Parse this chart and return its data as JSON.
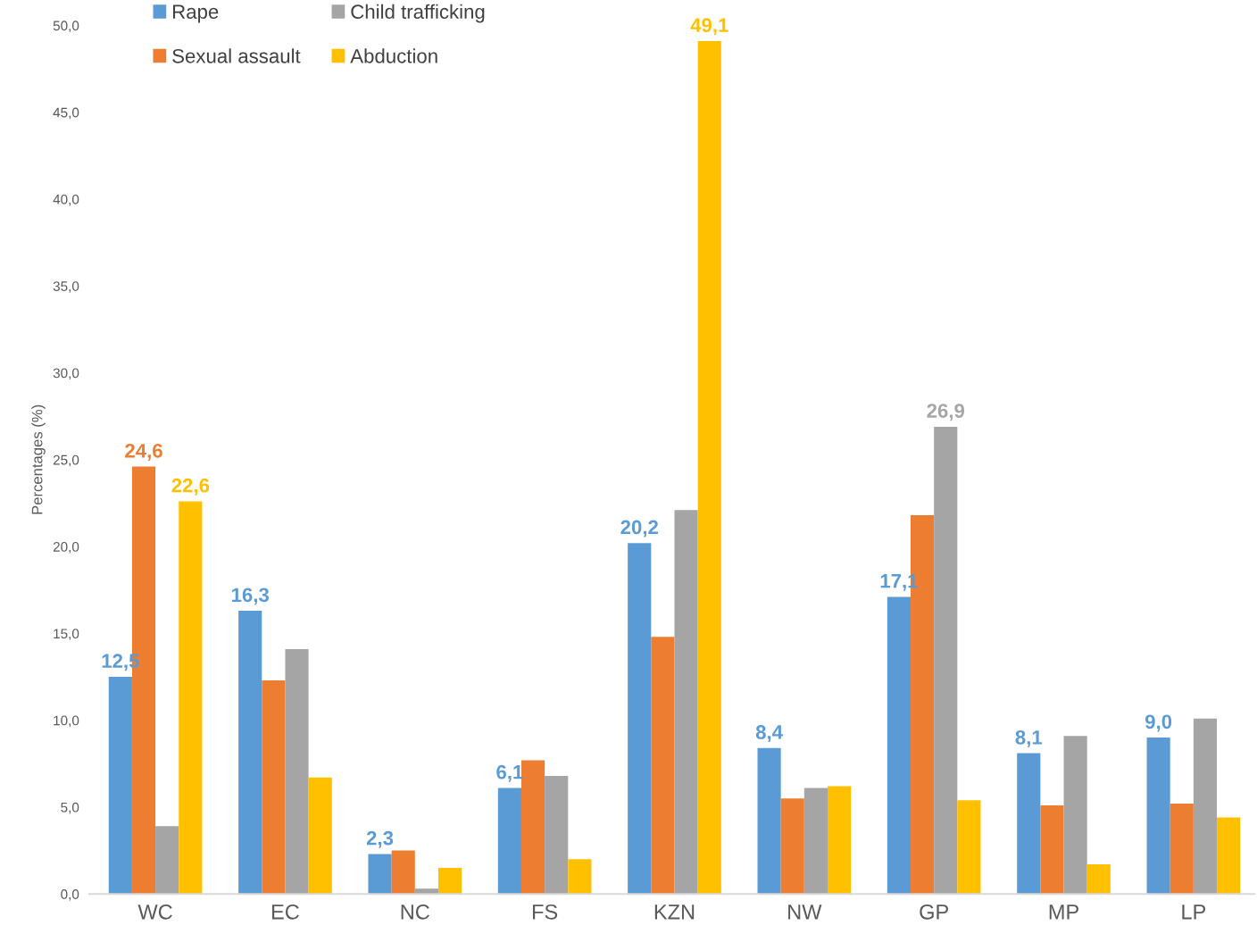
{
  "chart_data": {
    "type": "bar",
    "ylabel": "Percentages (%)",
    "categories": [
      "WC",
      "EC",
      "NC",
      "FS",
      "KZN",
      "NW",
      "GP",
      "MP",
      "LP"
    ],
    "series": [
      {
        "name": "Rape",
        "color": "#5b9bd5",
        "values": [
          12.5,
          16.3,
          2.3,
          6.1,
          20.2,
          8.4,
          17.1,
          8.1,
          9.0
        ],
        "value_labels": [
          "12,5",
          "16,3",
          "2,3",
          "6,1",
          "20,2",
          "8,4",
          "17,1",
          "8,1",
          "9,0"
        ]
      },
      {
        "name": "Sexual assault",
        "color": "#ed7d31",
        "values": [
          24.6,
          12.3,
          2.5,
          7.7,
          14.8,
          5.5,
          21.8,
          5.1,
          5.2
        ],
        "value_labels": [
          "24,6",
          null,
          null,
          null,
          null,
          null,
          null,
          null,
          null
        ]
      },
      {
        "name": "Child trafficking",
        "color": "#a5a5a5",
        "values": [
          3.9,
          14.1,
          0.3,
          6.8,
          22.1,
          6.1,
          26.9,
          9.1,
          10.1
        ],
        "value_labels": [
          null,
          null,
          null,
          null,
          null,
          null,
          "26,9",
          null,
          null
        ]
      },
      {
        "name": "Abduction",
        "color": "#ffc000",
        "values": [
          22.6,
          6.7,
          1.5,
          2.0,
          49.1,
          6.2,
          5.4,
          1.7,
          4.4
        ],
        "value_labels": [
          "22,6",
          null,
          null,
          null,
          "49,1",
          null,
          null,
          null,
          null
        ]
      }
    ],
    "ylim": [
      0,
      50
    ],
    "yticks": [
      {
        "value": 0,
        "label": "0,0"
      },
      {
        "value": 5,
        "label": "5,0"
      },
      {
        "value": 10,
        "label": "10,0"
      },
      {
        "value": 15,
        "label": "15,0"
      },
      {
        "value": 20,
        "label": "20,0"
      },
      {
        "value": 25,
        "label": "25,0"
      },
      {
        "value": 30,
        "label": "30,0"
      },
      {
        "value": 35,
        "label": "35,0"
      },
      {
        "value": 40,
        "label": "40,0"
      },
      {
        "value": 45,
        "label": "45,0"
      },
      {
        "value": 50,
        "label": "50,0"
      }
    ],
    "grid": false,
    "legend": "top left"
  }
}
